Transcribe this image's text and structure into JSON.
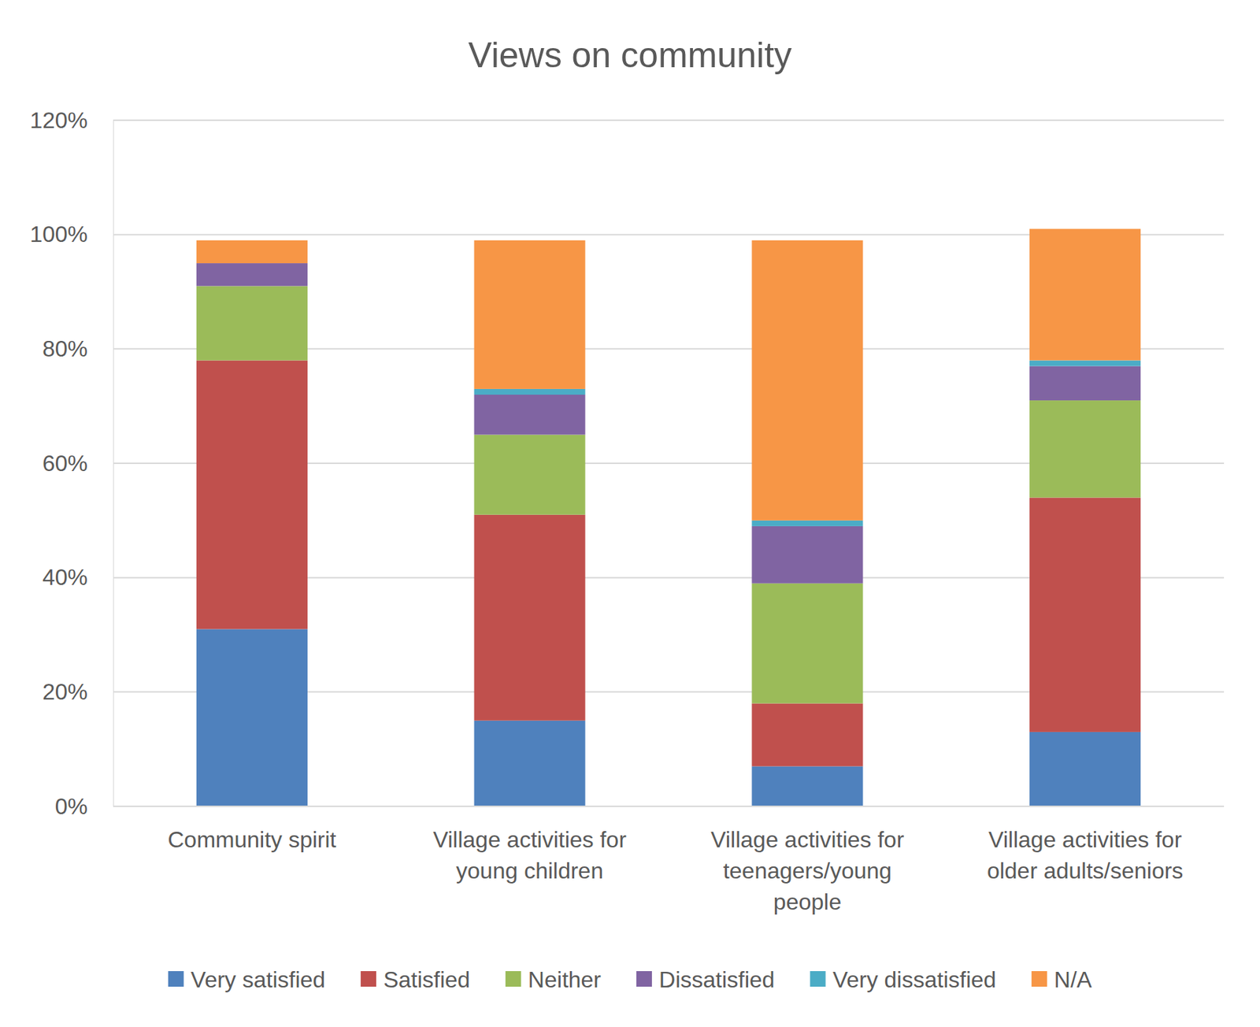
{
  "chart_data": {
    "type": "bar",
    "title": "Views on community",
    "stacked": true,
    "grid": true,
    "legend": "bottom",
    "categories": [
      "Community spirit",
      "Village activities for young children",
      "Village activities for teenagers/young people",
      "Village activities for older adults/seniors"
    ],
    "series": [
      {
        "name": "Very satisfied",
        "color": "#4f81bd",
        "values": [
          31,
          15,
          7,
          13
        ]
      },
      {
        "name": "Satisfied",
        "color": "#c0504d",
        "values": [
          47,
          36,
          11,
          41
        ]
      },
      {
        "name": "Neither",
        "color": "#9bbb59",
        "values": [
          13,
          14,
          21,
          17
        ]
      },
      {
        "name": "Dissatisfied",
        "color": "#8064a2",
        "values": [
          4,
          7,
          10,
          6
        ]
      },
      {
        "name": "Very dissatisfied",
        "color": "#4bacc6",
        "values": [
          0,
          1,
          1,
          1
        ]
      },
      {
        "name": "N/A",
        "color": "#f79646",
        "values": [
          4,
          26,
          49,
          23
        ]
      }
    ],
    "ylim": [
      0,
      120
    ],
    "yticks": [
      {
        "value": 0,
        "label": "0%"
      },
      {
        "value": 20,
        "label": "20%"
      },
      {
        "value": 40,
        "label": "40%"
      },
      {
        "value": 60,
        "label": "60%"
      },
      {
        "value": 80,
        "label": "80%"
      },
      {
        "value": 100,
        "label": "100%"
      },
      {
        "value": 120,
        "label": "120%"
      }
    ]
  }
}
